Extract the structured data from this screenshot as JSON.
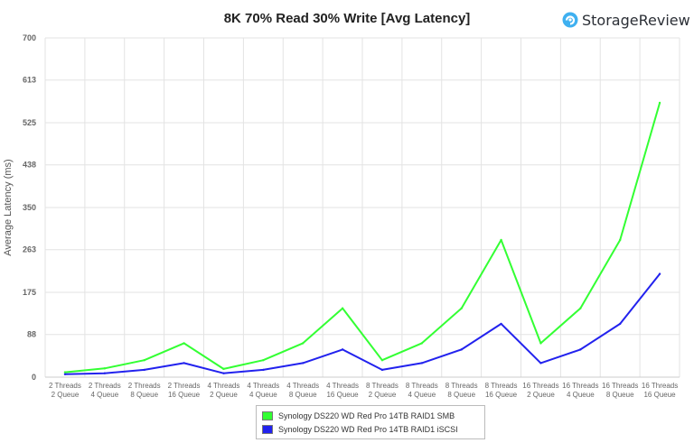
{
  "logo": {
    "name": "StorageReview",
    "icon": "storagereview-logo-icon",
    "color": "#3fb0f0"
  },
  "chart_data": {
    "type": "line",
    "title": "8K 70% Read 30% Write [Avg Latency]",
    "ylabel": "Average Latency (ms)",
    "xlabel": "",
    "ylim": [
      0,
      700
    ],
    "yticks": [
      "0",
      "88",
      "175",
      "263",
      "350",
      "438",
      "525",
      "613",
      "700"
    ],
    "grid": true,
    "legend_position": "bottom",
    "categories": [
      [
        "2 Threads",
        "2 Queue"
      ],
      [
        "2 Threads",
        "4 Queue"
      ],
      [
        "2 Threads",
        "8 Queue"
      ],
      [
        "2 Threads",
        "16 Queue"
      ],
      [
        "4 Threads",
        "2 Queue"
      ],
      [
        "4 Threads",
        "4 Queue"
      ],
      [
        "4 Threads",
        "8 Queue"
      ],
      [
        "4 Threads",
        "16 Queue"
      ],
      [
        "8 Threads",
        "2 Queue"
      ],
      [
        "8 Threads",
        "4 Queue"
      ],
      [
        "8 Threads",
        "8 Queue"
      ],
      [
        "8 Threads",
        "16 Queue"
      ],
      [
        "16 Threads",
        "2 Queue"
      ],
      [
        "16 Threads",
        "4 Queue"
      ],
      [
        "16 Threads",
        "8 Queue"
      ],
      [
        "16 Threads",
        "16 Queue"
      ]
    ],
    "series": [
      {
        "name": "Synology DS220 WD Red Pro 14TB RAID1 SMB",
        "color": "#33ff33",
        "values": [
          10,
          18,
          35,
          70,
          17,
          35,
          70,
          142,
          35,
          70,
          142,
          283,
          70,
          142,
          283,
          566
        ]
      },
      {
        "name": "Synology DS220 WD Red Pro 14TB RAID1 iSCSI",
        "color": "#2222ee",
        "values": [
          6,
          8,
          15,
          29,
          8,
          15,
          29,
          57,
          15,
          29,
          57,
          110,
          29,
          57,
          110,
          213
        ]
      }
    ]
  }
}
